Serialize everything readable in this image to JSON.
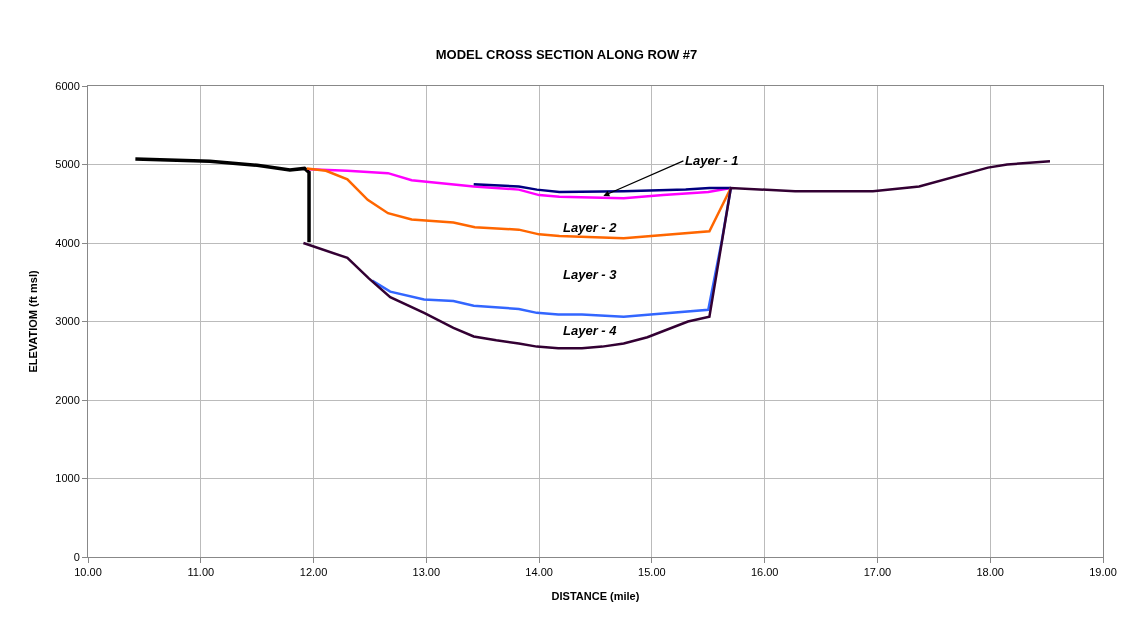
{
  "chart_data": {
    "type": "line",
    "title": "MODEL CROSS SECTION ALONG ROW #7",
    "xlabel": "DISTANCE (mile)",
    "ylabel": "ELEVATIOM (ft msl)",
    "series": [
      {
        "color": "#000000",
        "x": [
          10.42,
          11.08,
          11.5,
          11.79,
          11.92,
          11.96,
          11.96
        ],
        "values": [
          5070,
          5040,
          4990,
          4930,
          4950,
          4900,
          4010
        ]
      },
      {
        "color": "#ff00ff",
        "x": [
          11.96,
          12.3,
          12.66,
          12.87,
          13.42,
          13.82,
          14.0,
          14.18,
          14.75,
          15.1,
          15.5,
          15.7
        ],
        "values": [
          4940,
          4920,
          4890,
          4800,
          4720,
          4680,
          4610,
          4590,
          4570,
          4610,
          4650,
          4700
        ]
      },
      {
        "color": "#000080",
        "x": [
          13.42,
          13.82,
          13.98,
          14.18,
          14.75,
          15.3,
          15.51,
          15.7
        ],
        "values": [
          4750,
          4720,
          4680,
          4650,
          4660,
          4680,
          4700,
          4700
        ]
      },
      {
        "color": "#ff6600",
        "x": [
          11.94,
          12.11,
          12.3,
          12.48,
          12.66,
          12.87,
          13.24,
          13.43,
          13.82,
          14.0,
          14.18,
          14.75,
          15.51,
          15.7
        ],
        "values": [
          4950,
          4920,
          4810,
          4550,
          4380,
          4300,
          4260,
          4200,
          4170,
          4110,
          4090,
          4060,
          4150,
          4700
        ]
      },
      {
        "color": "#3366ff",
        "x": [
          12.52,
          12.68,
          12.98,
          13.24,
          13.42,
          13.82,
          13.98,
          14.17,
          14.38,
          14.75,
          14.99,
          15.5,
          15.62,
          15.7
        ],
        "values": [
          3520,
          3380,
          3280,
          3260,
          3200,
          3160,
          3110,
          3090,
          3090,
          3060,
          3090,
          3150,
          4030,
          4700
        ]
      },
      {
        "color": "#330033",
        "x": [
          11.91,
          12.3,
          12.49,
          12.68,
          12.98,
          13.24,
          13.42,
          13.62,
          13.82,
          13.98,
          14.17,
          14.38,
          14.56,
          14.75,
          14.96,
          15.32,
          15.51,
          15.7,
          16.27,
          16.96,
          17.37,
          17.98,
          18.15,
          18.53
        ],
        "values": [
          4000,
          3810,
          3550,
          3310,
          3110,
          2920,
          2810,
          2760,
          2720,
          2680,
          2660,
          2660,
          2680,
          2720,
          2800,
          3000,
          3060,
          4700,
          4660,
          4660,
          4720,
          4960,
          5000,
          5040
        ]
      }
    ],
    "annotations": [
      {
        "text": "Layer - 1",
        "x": 14.57,
        "y": 4600
      },
      "Layer - 2",
      "Layer - 3",
      "Layer - 4"
    ],
    "xlim": [
      10,
      19
    ],
    "xticks": [
      {
        "value": 10,
        "label": "10.00"
      },
      {
        "value": 11,
        "label": "11.00"
      },
      {
        "value": 12,
        "label": "12.00"
      },
      {
        "value": 13,
        "label": "13.00"
      },
      {
        "value": 14,
        "label": "14.00"
      },
      {
        "value": 15,
        "label": "15.00"
      },
      {
        "value": 16,
        "label": "16.00"
      },
      {
        "value": 17,
        "label": "17.00"
      },
      {
        "value": 18,
        "label": "18.00"
      },
      {
        "value": 19,
        "label": "19.00"
      }
    ],
    "ylim": [
      0,
      6000
    ],
    "yticks": [
      0,
      1000,
      2000,
      3000,
      4000,
      5000,
      6000
    ],
    "grid": true,
    "marker": "none",
    "line_style": "solid"
  }
}
